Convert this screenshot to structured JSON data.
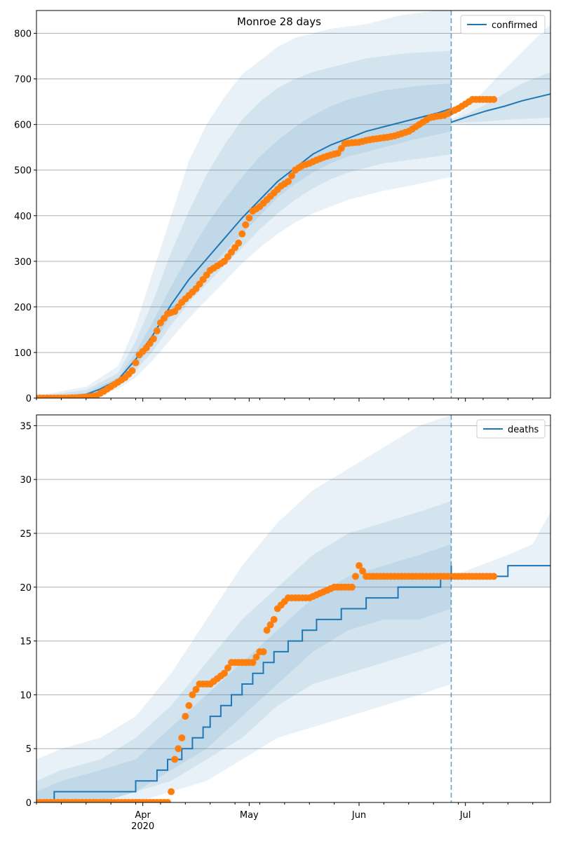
{
  "figure": {
    "title": "Monroe 28 days"
  },
  "chart_data": [
    {
      "type": "line",
      "title": "Monroe 28 days",
      "xlabel": "",
      "ylabel": "",
      "x_unit": "date",
      "xlim": [
        "2020-03-02",
        "2020-07-25"
      ],
      "ylim": [
        0,
        850
      ],
      "yticks": [
        0,
        100,
        200,
        300,
        400,
        500,
        600,
        700,
        800
      ],
      "xticks_major": [
        {
          "date": "2020-04-01",
          "label": "Apr",
          "sublabel": "2020"
        },
        {
          "date": "2020-05-01",
          "label": "May",
          "sublabel": ""
        },
        {
          "date": "2020-06-01",
          "label": "Jun",
          "sublabel": ""
        },
        {
          "date": "2020-07-01",
          "label": "Jul",
          "sublabel": ""
        }
      ],
      "grid": "horizontal",
      "legend": {
        "position": "top-right",
        "entries": [
          "confirmed"
        ]
      },
      "forecast_start": "2020-06-27",
      "colors": {
        "line": "#1f77b4",
        "band": "#1f77b4",
        "points": "#ff7f0e",
        "vline": "#1f77b4"
      },
      "series": [
        {
          "name": "confirmed",
          "role": "model median",
          "x": [
            "2020-03-02",
            "2020-03-09",
            "2020-03-16",
            "2020-03-20",
            "2020-03-25",
            "2020-03-30",
            "2020-04-04",
            "2020-04-09",
            "2020-04-14",
            "2020-04-19",
            "2020-04-24",
            "2020-04-29",
            "2020-05-04",
            "2020-05-09",
            "2020-05-14",
            "2020-05-19",
            "2020-05-24",
            "2020-05-29",
            "2020-06-03",
            "2020-06-08",
            "2020-06-13",
            "2020-06-18",
            "2020-06-23",
            "2020-06-27"
          ],
          "values": [
            0,
            2,
            8,
            20,
            40,
            85,
            140,
            205,
            260,
            305,
            350,
            395,
            435,
            475,
            505,
            535,
            555,
            570,
            585,
            595,
            605,
            615,
            625,
            635
          ]
        },
        {
          "name": "confirmed",
          "role": "model continuation",
          "x": [
            "2020-06-27",
            "2020-07-02",
            "2020-07-07",
            "2020-07-12",
            "2020-07-17",
            "2020-07-25"
          ],
          "values": [
            605,
            618,
            630,
            640,
            652,
            667
          ]
        }
      ],
      "bands": [
        {
          "x": [
            "2020-03-02",
            "2020-03-16",
            "2020-03-25",
            "2020-03-30",
            "2020-04-04",
            "2020-04-09",
            "2020-04-14",
            "2020-04-19",
            "2020-04-24",
            "2020-04-29",
            "2020-05-04",
            "2020-05-09",
            "2020-05-14",
            "2020-05-19",
            "2020-05-24",
            "2020-05-29",
            "2020-06-03",
            "2020-06-08",
            "2020-06-13",
            "2020-06-18",
            "2020-06-23",
            "2020-06-27"
          ],
          "lower": [
            0,
            3,
            20,
            45,
            85,
            130,
            175,
            215,
            255,
            295,
            330,
            360,
            385,
            405,
            420,
            435,
            445,
            455,
            462,
            470,
            478,
            485
          ],
          "upper": [
            5,
            25,
            70,
            160,
            280,
            400,
            520,
            600,
            660,
            710,
            740,
            770,
            790,
            800,
            810,
            815,
            820,
            830,
            840,
            845,
            850,
            850
          ]
        },
        {
          "x": [
            "2020-03-02",
            "2020-03-16",
            "2020-03-25",
            "2020-03-30",
            "2020-04-04",
            "2020-04-09",
            "2020-04-14",
            "2020-04-19",
            "2020-04-24",
            "2020-04-29",
            "2020-05-04",
            "2020-05-09",
            "2020-05-14",
            "2020-05-19",
            "2020-05-24",
            "2020-05-29",
            "2020-06-03",
            "2020-06-08",
            "2020-06-13",
            "2020-06-18",
            "2020-06-23",
            "2020-06-27"
          ],
          "lower": [
            0,
            5,
            28,
            60,
            105,
            160,
            210,
            250,
            290,
            330,
            370,
            405,
            435,
            460,
            480,
            495,
            505,
            515,
            520,
            525,
            530,
            535
          ],
          "upper": [
            3,
            18,
            55,
            125,
            215,
            320,
            410,
            490,
            555,
            610,
            650,
            680,
            700,
            715,
            725,
            735,
            745,
            750,
            755,
            758,
            760,
            762
          ]
        },
        {
          "x": [
            "2020-03-02",
            "2020-03-16",
            "2020-03-25",
            "2020-03-30",
            "2020-04-04",
            "2020-04-09",
            "2020-04-14",
            "2020-04-19",
            "2020-04-24",
            "2020-04-29",
            "2020-05-04",
            "2020-05-09",
            "2020-05-14",
            "2020-05-19",
            "2020-05-24",
            "2020-05-29",
            "2020-06-03",
            "2020-06-08",
            "2020-06-13",
            "2020-06-18",
            "2020-06-23",
            "2020-06-27"
          ],
          "lower": [
            0,
            6,
            33,
            70,
            120,
            180,
            230,
            275,
            320,
            360,
            400,
            440,
            470,
            495,
            515,
            530,
            540,
            550,
            560,
            570,
            578,
            585
          ],
          "upper": [
            2,
            12,
            45,
            100,
            170,
            245,
            315,
            380,
            435,
            485,
            530,
            565,
            595,
            620,
            640,
            655,
            665,
            675,
            680,
            685,
            688,
            690
          ]
        },
        {
          "x": [
            "2020-06-27",
            "2020-07-02",
            "2020-07-07",
            "2020-07-12",
            "2020-07-17",
            "2020-07-25"
          ],
          "lower": [
            600,
            598,
            598,
            598,
            598,
            598
          ],
          "upper": [
            610,
            640,
            680,
            720,
            760,
            820
          ]
        },
        {
          "x": [
            "2020-06-27",
            "2020-07-02",
            "2020-07-07",
            "2020-07-12",
            "2020-07-17",
            "2020-07-25"
          ],
          "lower": [
            603,
            605,
            607,
            610,
            612,
            615
          ],
          "upper": [
            607,
            625,
            645,
            668,
            690,
            715
          ]
        }
      ],
      "observed": {
        "x": [
          "2020-03-02",
          "2020-03-05",
          "2020-03-08",
          "2020-03-11",
          "2020-03-14",
          "2020-03-17",
          "2020-03-19",
          "2020-03-21",
          "2020-03-23",
          "2020-03-25",
          "2020-03-27",
          "2020-03-29",
          "2020-03-31",
          "2020-04-02",
          "2020-04-04",
          "2020-04-06",
          "2020-04-08",
          "2020-04-10",
          "2020-04-12",
          "2020-04-14",
          "2020-04-16",
          "2020-04-18",
          "2020-04-20",
          "2020-04-22",
          "2020-04-24",
          "2020-04-26",
          "2020-04-28",
          "2020-04-30",
          "2020-05-02",
          "2020-05-04",
          "2020-05-06",
          "2020-05-08",
          "2020-05-10",
          "2020-05-12",
          "2020-05-14",
          "2020-05-16",
          "2020-05-18",
          "2020-05-20",
          "2020-05-22",
          "2020-05-24",
          "2020-05-26",
          "2020-05-28",
          "2020-05-30",
          "2020-06-01",
          "2020-06-03",
          "2020-06-05",
          "2020-06-07",
          "2020-06-09",
          "2020-06-11",
          "2020-06-13",
          "2020-06-15",
          "2020-06-17",
          "2020-06-19",
          "2020-06-21",
          "2020-06-23",
          "2020-06-25",
          "2020-06-27",
          "2020-06-29",
          "2020-07-01",
          "2020-07-03",
          "2020-07-05",
          "2020-07-07",
          "2020-07-09"
        ],
        "values": [
          0,
          0,
          0,
          0,
          1,
          3,
          6,
          15,
          25,
          35,
          45,
          60,
          95,
          110,
          130,
          165,
          185,
          190,
          210,
          225,
          240,
          260,
          280,
          290,
          300,
          320,
          340,
          380,
          410,
          420,
          435,
          450,
          465,
          475,
          500,
          510,
          515,
          522,
          528,
          533,
          537,
          558,
          560,
          561,
          565,
          568,
          570,
          572,
          575,
          580,
          585,
          595,
          605,
          615,
          618,
          620,
          628,
          635,
          645,
          655,
          655,
          655,
          655
        ]
      }
    },
    {
      "type": "line",
      "title": "",
      "xlabel": "",
      "ylabel": "",
      "x_unit": "date",
      "xlim": [
        "2020-03-02",
        "2020-07-25"
      ],
      "ylim": [
        0,
        36
      ],
      "yticks": [
        0,
        5,
        10,
        15,
        20,
        25,
        30,
        35
      ],
      "xticks_major": [
        {
          "date": "2020-04-01",
          "label": "Apr",
          "sublabel": "2020"
        },
        {
          "date": "2020-05-01",
          "label": "May",
          "sublabel": ""
        },
        {
          "date": "2020-06-01",
          "label": "Jun",
          "sublabel": ""
        },
        {
          "date": "2020-07-01",
          "label": "Jul",
          "sublabel": ""
        }
      ],
      "grid": "horizontal",
      "legend": {
        "position": "top-right",
        "entries": [
          "deaths"
        ]
      },
      "forecast_start": "2020-06-27",
      "colors": {
        "line": "#1f77b4",
        "band": "#1f77b4",
        "points": "#ff7f0e",
        "vline": "#1f77b4"
      },
      "series": [
        {
          "name": "deaths",
          "role": "model median",
          "step": true,
          "x": [
            "2020-03-02",
            "2020-03-07",
            "2020-03-30",
            "2020-04-05",
            "2020-04-08",
            "2020-04-12",
            "2020-04-15",
            "2020-04-18",
            "2020-04-20",
            "2020-04-23",
            "2020-04-26",
            "2020-04-29",
            "2020-05-02",
            "2020-05-05",
            "2020-05-08",
            "2020-05-12",
            "2020-05-16",
            "2020-05-20",
            "2020-05-27",
            "2020-06-03",
            "2020-06-12",
            "2020-06-24",
            "2020-06-27"
          ],
          "values": [
            0,
            1,
            2,
            3,
            4,
            5,
            6,
            7,
            8,
            9,
            10,
            11,
            12,
            13,
            14,
            15,
            16,
            17,
            18,
            19,
            20,
            21,
            22
          ]
        },
        {
          "name": "deaths",
          "role": "model continuation",
          "step": true,
          "x": [
            "2020-06-27",
            "2020-07-13",
            "2020-07-25"
          ],
          "values": [
            21,
            22,
            22
          ]
        }
      ],
      "bands": [
        {
          "x": [
            "2020-03-02",
            "2020-03-09",
            "2020-03-20",
            "2020-03-30",
            "2020-04-09",
            "2020-04-19",
            "2020-04-29",
            "2020-05-09",
            "2020-05-19",
            "2020-05-29",
            "2020-06-08",
            "2020-06-18",
            "2020-06-27"
          ],
          "lower": [
            0,
            0,
            0,
            0,
            1,
            2,
            4,
            6,
            7,
            8,
            9,
            10,
            11
          ],
          "upper": [
            4,
            5,
            6,
            8,
            12,
            17,
            22,
            26,
            29,
            31,
            33,
            35,
            36
          ]
        },
        {
          "x": [
            "2020-03-02",
            "2020-03-09",
            "2020-03-20",
            "2020-03-30",
            "2020-04-09",
            "2020-04-19",
            "2020-04-29",
            "2020-05-09",
            "2020-05-19",
            "2020-05-29",
            "2020-06-08",
            "2020-06-18",
            "2020-06-27"
          ],
          "lower": [
            0,
            0,
            0,
            1,
            2,
            4,
            6,
            9,
            11,
            12,
            13,
            14,
            15
          ],
          "upper": [
            2,
            3,
            4,
            6,
            9,
            13,
            17,
            20,
            23,
            25,
            26,
            27,
            28
          ]
        },
        {
          "x": [
            "2020-03-02",
            "2020-03-09",
            "2020-03-20",
            "2020-03-30",
            "2020-04-09",
            "2020-04-19",
            "2020-04-29",
            "2020-05-09",
            "2020-05-19",
            "2020-05-29",
            "2020-06-08",
            "2020-06-18",
            "2020-06-27"
          ],
          "lower": [
            0,
            0,
            0,
            1,
            3,
            5,
            8,
            11,
            14,
            16,
            17,
            17,
            18
          ],
          "upper": [
            1,
            2,
            3,
            4,
            7,
            10,
            13,
            16,
            19,
            21,
            22,
            23,
            24
          ]
        },
        {
          "x": [
            "2020-06-27",
            "2020-07-05",
            "2020-07-13",
            "2020-07-20",
            "2020-07-25"
          ],
          "lower": [
            20,
            20,
            20,
            20,
            20
          ],
          "upper": [
            21,
            22,
            23,
            24,
            27
          ]
        }
      ],
      "observed": {
        "x": [
          "2020-03-02",
          "2020-03-10",
          "2020-03-20",
          "2020-04-01",
          "2020-04-08",
          "2020-04-09",
          "2020-04-10",
          "2020-04-11",
          "2020-04-12",
          "2020-04-13",
          "2020-04-14",
          "2020-04-15",
          "2020-04-17",
          "2020-04-20",
          "2020-04-24",
          "2020-04-26",
          "2020-05-02",
          "2020-05-04",
          "2020-05-05",
          "2020-05-06",
          "2020-05-08",
          "2020-05-09",
          "2020-05-12",
          "2020-05-18",
          "2020-05-25",
          "2020-05-30",
          "2020-06-01",
          "2020-06-03",
          "2020-06-10",
          "2020-06-20",
          "2020-06-27",
          "2020-07-05",
          "2020-07-09"
        ],
        "values": [
          0,
          0,
          0,
          0,
          0,
          1,
          4,
          5,
          6,
          8,
          9,
          10,
          11,
          11,
          12,
          13,
          13,
          14,
          14,
          16,
          17,
          18,
          19,
          19,
          20,
          20,
          22,
          21,
          21,
          21,
          21,
          21,
          21
        ]
      }
    }
  ]
}
